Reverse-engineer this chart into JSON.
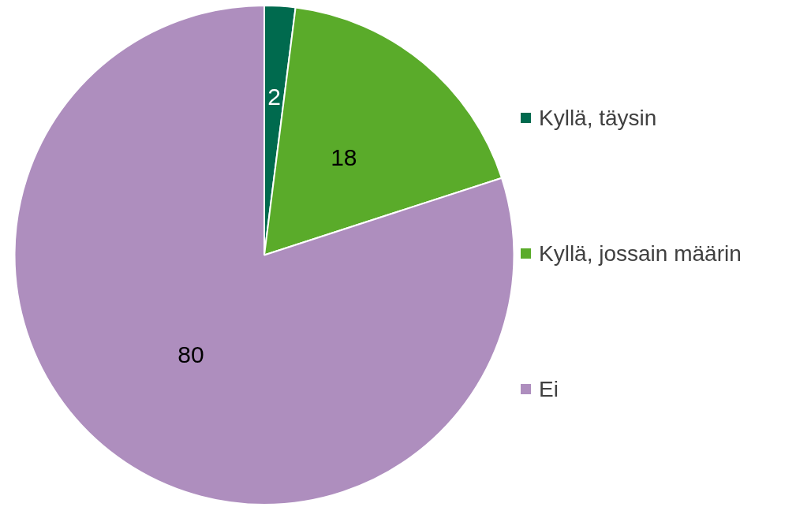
{
  "chart_data": {
    "type": "pie",
    "categories": [
      "Kyllä, täysin",
      "Kyllä, jossain määrin",
      "Ei"
    ],
    "values": [
      2,
      18,
      80
    ],
    "colors": [
      "#006a4e",
      "#5aab2a",
      "#ae8ebe"
    ],
    "data_labels": true,
    "legend": "right"
  }
}
